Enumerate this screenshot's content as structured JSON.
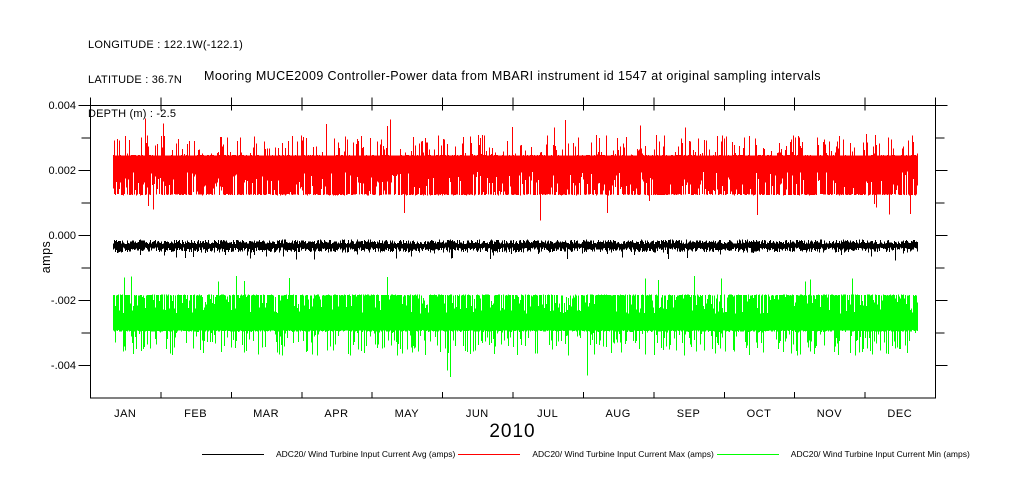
{
  "meta_header": {
    "longitude": "LONGITUDE : 122.1W(-122.1)",
    "latitude": "LATITUDE : 36.7N",
    "depth": "DEPTH (m) : -2.5"
  },
  "title": "Mooring MUCE2009 Controller-Power data from MBARI instrument id 1547 at original sampling intervals",
  "colors": {
    "background": "#ffffff",
    "axis": "#000000",
    "avg_series": "#000000",
    "max_series": "#ff0000",
    "min_series": "#00ff00"
  },
  "legend": {
    "entries": [
      {
        "label": "ADC20/ Wind Turbine Input Current Avg (amps)",
        "color": "#000000"
      },
      {
        "label": "ADC20/ Wind Turbine Input Current Max (amps)",
        "color": "#ff0000"
      },
      {
        "label": "ADC20/ Wind Turbine Input Current Min (amps)",
        "color": "#00ff00"
      }
    ]
  },
  "chart_data": {
    "type": "line",
    "title": "Mooring MUCE2009 Controller-Power data from MBARI instrument id 1547 at original sampling intervals",
    "ylabel": "amps",
    "xlabel": "2010",
    "year_label": "2010",
    "grid": false,
    "legend_position": "bottom",
    "x_axis": {
      "months": [
        "JAN",
        "FEB",
        "MAR",
        "APR",
        "MAY",
        "JUN",
        "JUL",
        "AUG",
        "SEP",
        "OCT",
        "NOV",
        "DEC"
      ],
      "year": "2010",
      "data_start_frac": 0.0272,
      "data_end_frac": 0.9787
    },
    "y_axis": {
      "range": [
        -0.005,
        0.004
      ],
      "tick_step": 0.001,
      "ticks": [
        {
          "value": 0.004,
          "label": "0.004"
        },
        {
          "value": 0.003,
          "label": ""
        },
        {
          "value": 0.002,
          "label": "0.002"
        },
        {
          "value": 0.001,
          "label": ""
        },
        {
          "value": 0.0,
          "label": "0.000"
        },
        {
          "value": -0.001,
          "label": ""
        },
        {
          "value": -0.002,
          "label": "-.002"
        },
        {
          "value": -0.003,
          "label": ""
        },
        {
          "value": -0.004,
          "label": "-.004"
        }
      ]
    },
    "series": [
      {
        "name": "ADC20/ Wind Turbine Input Current Max (amps)",
        "role": "max",
        "color": "#ff0000",
        "style": "envelope-band",
        "summary": {
          "solid_band": [
            0.0012,
            0.0025
          ],
          "frequent_spikes_to": 0.0031,
          "rare_spikes_to": 0.0036,
          "rare_dips_to": 0.0004
        },
        "top_rules": [
          {
            "p": 0.012,
            "range": [
              0.00305,
              0.00365
            ]
          },
          {
            "p": 0.32,
            "range": [
              0.00248,
              0.00308
            ]
          },
          {
            "p": 1,
            "range": [
              0.00244,
              0.00246
            ]
          }
        ],
        "bottom_rules": [
          {
            "p": 0.006,
            "range": [
              0.00035,
              0.0009
            ]
          },
          {
            "p": 0.015,
            "range": [
              0.0006,
              0.0011
            ]
          },
          {
            "p": 0.24,
            "range": [
              0.0013,
              0.00195
            ]
          },
          {
            "p": 1,
            "range": [
              0.00122,
              0.00126
            ]
          }
        ]
      },
      {
        "name": "ADC20/ Wind Turbine Input Current Min (amps)",
        "role": "min",
        "color": "#00ff00",
        "style": "envelope-band",
        "summary": {
          "solid_band": [
            -0.003,
            -0.0018
          ],
          "frequent_spikes_to": -0.0037,
          "rare_spikes_to": -0.0044,
          "rare_rises_to": -0.0012
        },
        "top_rules": [
          {
            "p": 0.008,
            "range": [
              -0.00145,
              -0.00118
            ]
          },
          {
            "p": 0.3,
            "range": [
              -0.00242,
              -0.00186
            ]
          },
          {
            "p": 1,
            "range": [
              -0.00186,
              -0.00183
            ]
          }
        ],
        "bottom_rules": [
          {
            "p": 0.007,
            "range": [
              -0.00438,
              -0.00375
            ]
          },
          {
            "p": 0.38,
            "range": [
              -0.00372,
              -0.00296
            ]
          },
          {
            "p": 1,
            "range": [
              -0.00298,
              -0.00293
            ]
          }
        ]
      },
      {
        "name": "ADC20/ Wind Turbine Input Current Avg (amps)",
        "role": "avg",
        "color": "#000000",
        "style": "noisy-line",
        "summary": {
          "mean": -0.00035,
          "noise_halfwidth": 0.0002,
          "rare_spikes_to": 0.0001
        },
        "top_rules": [
          {
            "p": 0.002,
            "range": [
              3e-05,
              0.00013
            ]
          },
          {
            "p": 1,
            "range": [
              -0.00028,
              -0.00014
            ]
          }
        ],
        "bottom_rules": [
          {
            "p": 0.05,
            "range": [
              -0.00078,
              -0.00052
            ]
          },
          {
            "p": 1,
            "range": [
              -0.00054,
              -0.00038
            ]
          }
        ]
      }
    ],
    "render_seed": 20101547
  }
}
